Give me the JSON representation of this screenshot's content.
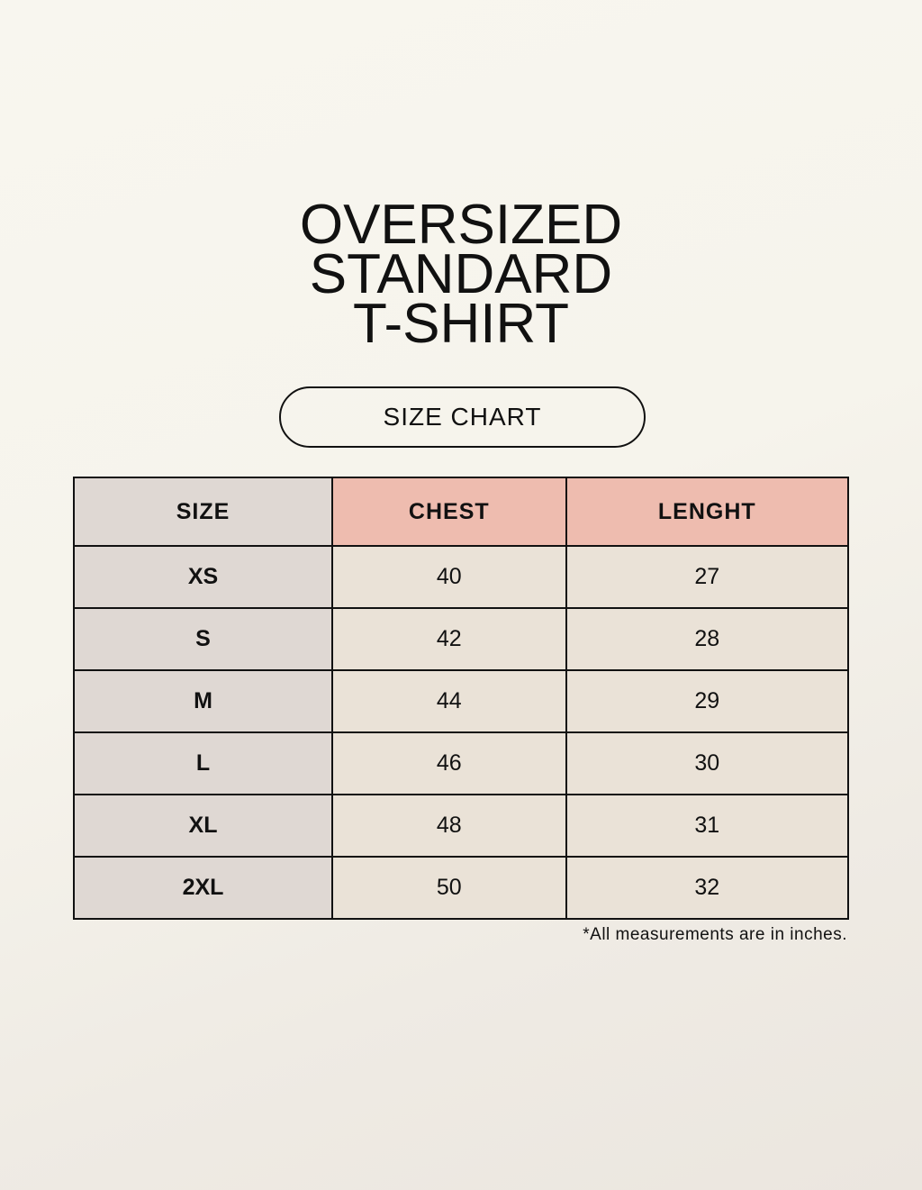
{
  "title": [
    "OVERSIZED",
    "STANDARD",
    "T-SHIRT"
  ],
  "badge": "SIZE CHART",
  "table": {
    "headers": [
      "SIZE",
      "CHEST",
      "LENGHT"
    ],
    "rows": [
      [
        "XS",
        "40",
        "27"
      ],
      [
        "S",
        "42",
        "28"
      ],
      [
        "M",
        "44",
        "29"
      ],
      [
        "L",
        "46",
        "30"
      ],
      [
        "XL",
        "48",
        "31"
      ],
      [
        "2XL",
        "50",
        "32"
      ]
    ]
  },
  "note": "*All measurements are in inches.",
  "colors": {
    "size_column": "#dfd8d3",
    "header_accent": "#eebcaf",
    "cell": "#eae2d7",
    "background": "#f7f5ee"
  }
}
